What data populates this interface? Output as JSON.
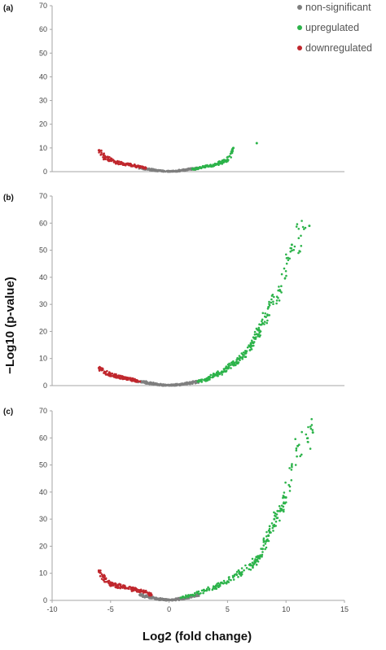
{
  "figure": {
    "ylabel": "−Log10 (p-value)",
    "xlabel": "Log2 (fold change)",
    "legend": [
      {
        "label": "non-significant",
        "color": "#7f7f7f"
      },
      {
        "label": "upregulated",
        "color": "#2cb34a"
      },
      {
        "label": "downregulated",
        "color": "#c0272d"
      }
    ]
  },
  "chart_data": [
    {
      "type": "scatter",
      "panel": "(a)",
      "xlim": [
        -10,
        15
      ],
      "ylim": [
        0,
        70
      ],
      "yticks": [
        0,
        10,
        20,
        30,
        40,
        50,
        60,
        70
      ],
      "grid": false,
      "legend_position": "top-right",
      "series": [
        {
          "name": "non-significant",
          "color": "#7f7f7f",
          "x": [
            -2.5,
            -2,
            -1.5,
            -1,
            -0.5,
            0,
            0.5,
            1,
            1.5,
            2,
            2.5
          ],
          "y": [
            1.5,
            1.2,
            0.8,
            0.5,
            0.2,
            0.05,
            0.2,
            0.5,
            0.8,
            1.1,
            1.4
          ]
        },
        {
          "name": "upregulated",
          "color": "#2cb34a",
          "x": [
            2,
            2.5,
            3,
            3.5,
            4,
            4.5,
            5,
            5.5,
            7.5
          ],
          "y": [
            1.2,
            1.5,
            2,
            2.5,
            3,
            4,
            5,
            10,
            12
          ]
        },
        {
          "name": "downregulated",
          "color": "#c0272d",
          "x": [
            -6,
            -5.5,
            -5,
            -4.5,
            -4,
            -3.5,
            -3,
            -2.5,
            -2
          ],
          "y": [
            9,
            6,
            5,
            4,
            3.5,
            3,
            2.5,
            2,
            1.5
          ]
        }
      ]
    },
    {
      "type": "scatter",
      "panel": "(b)",
      "xlim": [
        -10,
        15
      ],
      "ylim": [
        0,
        70
      ],
      "yticks": [
        0,
        10,
        20,
        30,
        40,
        50,
        60,
        70
      ],
      "grid": false,
      "series": [
        {
          "name": "non-significant",
          "color": "#7f7f7f",
          "x": [
            -2.5,
            -2,
            -1.5,
            -1,
            -0.5,
            0,
            0.5,
            1,
            1.5,
            2,
            2.5
          ],
          "y": [
            1.5,
            1.2,
            0.8,
            0.5,
            0.2,
            0.05,
            0.2,
            0.5,
            0.8,
            1.1,
            1.5
          ]
        },
        {
          "name": "upregulated",
          "color": "#2cb34a",
          "x": [
            2.5,
            3,
            3.5,
            4,
            4.5,
            5,
            5.5,
            6,
            6.5,
            7,
            7.5,
            8,
            8.5,
            9.5,
            10.5,
            12
          ],
          "y": [
            1.5,
            2,
            3,
            4,
            5,
            6.5,
            8,
            10,
            12,
            15,
            19,
            23,
            29,
            35,
            52,
            59
          ]
        },
        {
          "name": "downregulated",
          "color": "#c0272d",
          "x": [
            -6,
            -5.5,
            -5,
            -4.5,
            -4,
            -3.5,
            -3,
            -2.5
          ],
          "y": [
            6.5,
            5,
            4,
            3.5,
            3,
            2.5,
            2,
            1.5
          ]
        }
      ]
    },
    {
      "type": "scatter",
      "panel": "(c)",
      "xlim": [
        -10,
        15
      ],
      "ylim": [
        0,
        70
      ],
      "xticks": [
        -10,
        -5,
        0,
        5,
        10,
        15
      ],
      "yticks": [
        0,
        10,
        20,
        30,
        40,
        50,
        60,
        70
      ],
      "grid": false,
      "series": [
        {
          "name": "non-significant",
          "color": "#7f7f7f",
          "x": [
            -2.5,
            -2,
            -1.5,
            -1,
            -0.5,
            0,
            0.5,
            1,
            1.5,
            2,
            2.5
          ],
          "y": [
            2,
            1.5,
            1,
            0.6,
            0.3,
            0.05,
            0.3,
            0.6,
            1,
            1.5,
            2
          ]
        },
        {
          "name": "upregulated",
          "color": "#2cb34a",
          "x": [
            1,
            2,
            3,
            4,
            5,
            6,
            7,
            7.5,
            8,
            8.5,
            9,
            9.5,
            10,
            11,
            12.3
          ],
          "y": [
            1,
            2,
            3.5,
            5,
            7,
            10,
            13,
            15,
            19,
            24,
            30,
            33,
            38,
            57,
            62
          ]
        },
        {
          "name": "downregulated",
          "color": "#c0272d",
          "x": [
            -6,
            -5.5,
            -5,
            -4.5,
            -4,
            -3.5,
            -3,
            -2.5,
            -2,
            -1.5
          ],
          "y": [
            11,
            8,
            6,
            5.5,
            5,
            4.5,
            4,
            3.5,
            3,
            2
          ]
        }
      ]
    }
  ]
}
